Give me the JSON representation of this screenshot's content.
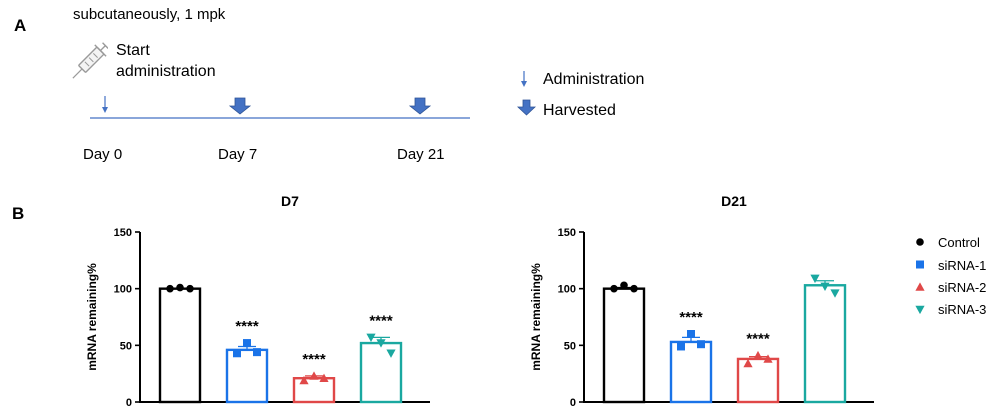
{
  "panel_a": {
    "letter": "A",
    "dose_text": "subcutaneously, 1 mpk",
    "start_line1": "Start",
    "start_line2": "administration",
    "days": [
      "Day 0",
      "Day 7",
      "Day 21"
    ],
    "legend_administration": "Administration",
    "legend_harvested": "Harvested",
    "colors": {
      "timeline": "#4472c4",
      "arrow": "#4472c4"
    }
  },
  "panel_b": {
    "letter": "B",
    "legend": [
      {
        "label": "Control",
        "color": "#000000",
        "marker": "circle"
      },
      {
        "label": "siRNA-1",
        "color": "#1a73e8",
        "marker": "square"
      },
      {
        "label": "siRNA-2",
        "color": "#e04848",
        "marker": "triangle-up"
      },
      {
        "label": "siRNA-3",
        "color": "#1aa8a0",
        "marker": "triangle-down"
      }
    ]
  },
  "chart_data": [
    {
      "type": "bar",
      "title": "D7",
      "ylabel": "mRNA remaining%",
      "ylim": [
        0,
        150
      ],
      "yticks": [
        0,
        50,
        100,
        150
      ],
      "categories": [
        "Control",
        "siRNA-1",
        "siRNA-2",
        "siRNA-3"
      ],
      "values": [
        100,
        46,
        21,
        52
      ],
      "errors": [
        0,
        3,
        2,
        5
      ],
      "points": [
        [
          100,
          101,
          100
        ],
        [
          43,
          52,
          44
        ],
        [
          19,
          23,
          21
        ],
        [
          57,
          52,
          43
        ]
      ],
      "annotations": [
        "",
        "****",
        "****",
        "****"
      ]
    },
    {
      "type": "bar",
      "title": "D21",
      "ylabel": "mRNA remaining%",
      "ylim": [
        0,
        150
      ],
      "yticks": [
        0,
        50,
        100,
        150
      ],
      "categories": [
        "Control",
        "siRNA-1",
        "siRNA-2",
        "siRNA-3"
      ],
      "values": [
        100,
        53,
        38,
        103
      ],
      "errors": [
        1,
        4,
        2,
        4
      ],
      "points": [
        [
          100,
          103,
          100
        ],
        [
          49,
          60,
          51
        ],
        [
          34,
          41,
          38
        ],
        [
          109,
          102,
          96
        ]
      ],
      "annotations": [
        "",
        "****",
        "****",
        ""
      ]
    }
  ]
}
